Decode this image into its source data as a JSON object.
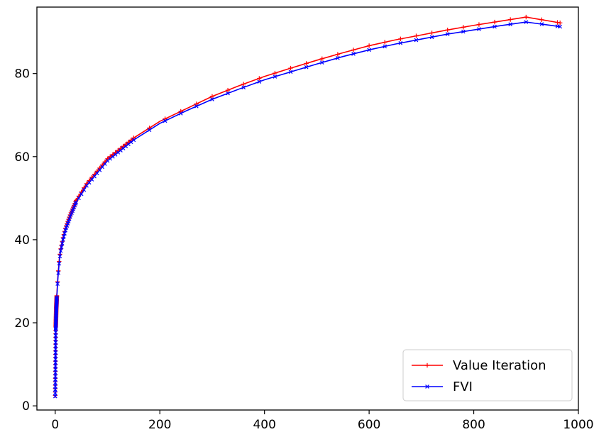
{
  "chart_data": {
    "type": "line",
    "title": "",
    "xlabel": "",
    "ylabel": "",
    "xlim": [
      -35,
      1000
    ],
    "ylim": [
      -1,
      96
    ],
    "x_ticks": [
      0,
      200,
      400,
      600,
      800,
      1000
    ],
    "y_ticks": [
      0,
      20,
      40,
      60,
      80
    ],
    "grid": false,
    "legend_position": "lower-right",
    "series": [
      {
        "name": "Value Iteration",
        "color": "#ff0000",
        "marker": "+",
        "x": [
          0,
          1,
          2,
          3,
          5,
          8,
          10,
          15,
          20,
          30,
          40,
          50,
          60,
          80,
          100,
          120,
          150,
          200,
          250,
          300,
          350,
          400,
          450,
          500,
          550,
          600,
          650,
          700,
          750,
          800,
          850,
          900,
          965
        ],
        "y": [
          2.5,
          19,
          23.5,
          26.5,
          31,
          35.5,
          37.5,
          40.5,
          43,
          46.5,
          49.5,
          51.5,
          53.5,
          56.5,
          59.5,
          61.5,
          64.5,
          68.5,
          71.5,
          74.5,
          77,
          79.3,
          81.3,
          83.2,
          85,
          86.7,
          88.1,
          89.3,
          90.5,
          91.6,
          92.6,
          93.6,
          92.2
        ]
      },
      {
        "name": "FVI",
        "color": "#0000ff",
        "marker": "x",
        "x": [
          0,
          1,
          2,
          3,
          5,
          8,
          10,
          15,
          20,
          30,
          40,
          50,
          60,
          80,
          100,
          120,
          150,
          200,
          250,
          300,
          350,
          400,
          450,
          500,
          550,
          600,
          650,
          700,
          750,
          800,
          850,
          900,
          965
        ],
        "y": [
          2.3,
          18.5,
          23,
          26,
          30.5,
          35,
          37,
          40,
          42.5,
          46,
          49,
          51,
          53,
          56,
          59,
          61,
          64,
          68,
          71,
          73.8,
          76.2,
          78.5,
          80.4,
          82.3,
          84.1,
          85.7,
          87.1,
          88.3,
          89.5,
          90.5,
          91.5,
          92.4,
          91.3
        ]
      }
    ]
  }
}
